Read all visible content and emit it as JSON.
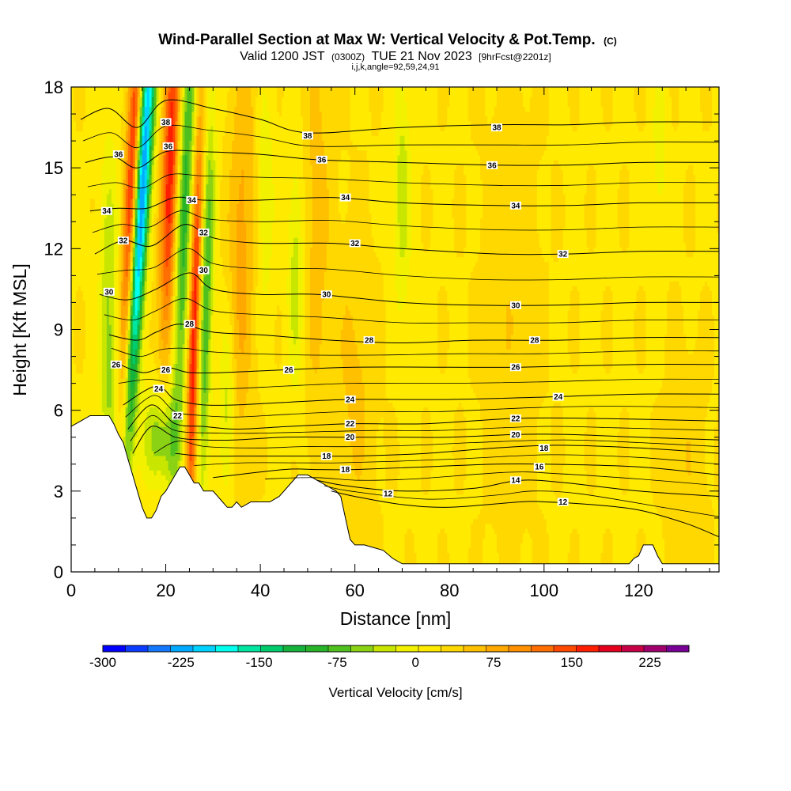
{
  "title": {
    "main": "Wind-Parallel Section at Max W: Vertical Velocity & Pot.Temp.",
    "main_suffix": "(C)",
    "valid_prefix": "Valid 1200 JST",
    "valid_utc": "(0300Z)",
    "valid_date": "TUE 21 Nov 2023",
    "forecast": "[9hrFcst@2201z]",
    "params": "i,j,k,angle=92,59,24,91"
  },
  "colorbar": {
    "title": "Vertical Velocity [cm/s]",
    "tick_labels": [
      "-300",
      "-225",
      "-150",
      "-75",
      "0",
      "75",
      "150",
      "225"
    ],
    "tick_values": [
      -300,
      -225,
      -150,
      -75,
      0,
      75,
      150,
      225
    ],
    "range": [
      -300,
      262.5
    ],
    "colors": [
      "#0000ff",
      "#0a3cff",
      "#1478ff",
      "#00aaff",
      "#00d2ff",
      "#00ffee",
      "#00e6a0",
      "#00cc6e",
      "#14b43c",
      "#28b428",
      "#50c01e",
      "#8cd214",
      "#c8e600",
      "#f2f200",
      "#ffea00",
      "#ffd800",
      "#ffc000",
      "#ffa800",
      "#ff9000",
      "#ff6e00",
      "#ff4800",
      "#ff1e00",
      "#e6001e",
      "#c80046",
      "#a0006e",
      "#780096"
    ]
  },
  "chart_data": {
    "type": "heatmap",
    "title": "Wind-Parallel Section at Max W: Vertical Velocity & Pot.Temp.",
    "xlabel": "Distance [nm]",
    "ylabel": "Height [Kft MSL]",
    "xlim": [
      0,
      137
    ],
    "ylim": [
      0,
      18
    ],
    "x_ticks": [
      0,
      20,
      40,
      60,
      80,
      100,
      120
    ],
    "x_tick_labels": [
      "0",
      "20",
      "40",
      "60",
      "80",
      "100",
      "120"
    ],
    "y_ticks": [
      0,
      3,
      6,
      9,
      12,
      15,
      18
    ],
    "y_tick_labels": [
      "0",
      "3",
      "6",
      "9",
      "12",
      "15",
      "18"
    ],
    "terrain": [
      [
        0,
        5.4
      ],
      [
        2,
        5.6
      ],
      [
        4,
        5.8
      ],
      [
        6,
        5.8
      ],
      [
        8,
        5.8
      ],
      [
        9,
        5.5
      ],
      [
        10,
        5.1
      ],
      [
        11,
        4.8
      ],
      [
        12,
        4.2
      ],
      [
        13,
        3.6
      ],
      [
        14,
        3.0
      ],
      [
        15,
        2.4
      ],
      [
        16,
        2.0
      ],
      [
        17,
        2.0
      ],
      [
        18,
        2.3
      ],
      [
        19,
        2.8
      ],
      [
        20,
        3.0
      ],
      [
        21,
        3.3
      ],
      [
        22,
        3.6
      ],
      [
        23,
        3.9
      ],
      [
        24,
        3.9
      ],
      [
        25,
        3.6
      ],
      [
        26,
        3.3
      ],
      [
        27,
        3.3
      ],
      [
        28,
        3.0
      ],
      [
        30,
        3.0
      ],
      [
        31,
        2.8
      ],
      [
        32,
        2.6
      ],
      [
        33,
        2.4
      ],
      [
        34,
        2.4
      ],
      [
        35,
        2.6
      ],
      [
        36,
        2.4
      ],
      [
        38,
        2.6
      ],
      [
        40,
        2.6
      ],
      [
        42,
        2.6
      ],
      [
        44,
        2.8
      ],
      [
        46,
        3.2
      ],
      [
        48,
        3.6
      ],
      [
        50,
        3.6
      ],
      [
        52,
        3.4
      ],
      [
        54,
        3.2
      ],
      [
        56,
        3.0
      ],
      [
        57,
        2.8
      ],
      [
        58,
        2.0
      ],
      [
        59,
        1.2
      ],
      [
        60,
        1.0
      ],
      [
        62,
        1.0
      ],
      [
        64,
        0.9
      ],
      [
        66,
        0.8
      ],
      [
        68,
        0.5
      ],
      [
        70,
        0.3
      ],
      [
        80,
        0.3
      ],
      [
        90,
        0.3
      ],
      [
        100,
        0.3
      ],
      [
        110,
        0.3
      ],
      [
        118,
        0.3
      ],
      [
        119,
        0.5
      ],
      [
        120,
        0.6
      ],
      [
        121,
        1.0
      ],
      [
        123,
        1.0
      ],
      [
        124,
        0.6
      ],
      [
        125,
        0.3
      ],
      [
        130,
        0.3
      ],
      [
        135,
        0.3
      ],
      [
        137,
        0.3
      ]
    ],
    "w_features": [
      {
        "x": 8,
        "y": 8.5,
        "sx": 1.4,
        "sy": 5,
        "tilt": 0,
        "amp": -70
      },
      {
        "x": 12.5,
        "y": 12,
        "sx": 1.1,
        "sy": 8,
        "tilt": 0.2,
        "amp": 175
      },
      {
        "x": 14.5,
        "y": 13,
        "sx": 1.2,
        "sy": 8,
        "tilt": 0.35,
        "amp": -280
      },
      {
        "x": 19,
        "y": 5,
        "sx": 2.5,
        "sy": 1.3,
        "tilt": 0,
        "amp": -90
      },
      {
        "x": 21,
        "y": 15,
        "sx": 1.3,
        "sy": 5,
        "tilt": 0.15,
        "amp": 150
      },
      {
        "x": 24,
        "y": 13.5,
        "sx": 1.3,
        "sy": 6.5,
        "tilt": 0.2,
        "amp": -120
      },
      {
        "x": 26,
        "y": 9,
        "sx": 0.9,
        "sy": 6,
        "tilt": 0.15,
        "amp": 160
      },
      {
        "x": 28.5,
        "y": 10,
        "sx": 1.0,
        "sy": 5,
        "tilt": 0.15,
        "amp": -110
      },
      {
        "x": 33,
        "y": 6,
        "sx": 1.2,
        "sy": 2.5,
        "tilt": 0,
        "amp": -60
      },
      {
        "x": 36,
        "y": 12,
        "sx": 2.0,
        "sy": 6,
        "tilt": 0.1,
        "amp": 55
      },
      {
        "x": 41,
        "y": 14,
        "sx": 1.3,
        "sy": 3,
        "tilt": 0,
        "amp": -40
      },
      {
        "x": 47.5,
        "y": 11,
        "sx": 1.2,
        "sy": 3,
        "tilt": 0,
        "amp": -55
      },
      {
        "x": 52,
        "y": 13,
        "sx": 2.0,
        "sy": 6,
        "tilt": 0,
        "amp": 35
      },
      {
        "x": 70,
        "y": 14,
        "sx": 1.3,
        "sy": 3,
        "tilt": 0,
        "amp": -55
      },
      {
        "x": 60,
        "y": 7,
        "sx": 3.0,
        "sy": 4,
        "tilt": 0,
        "amp": 30
      },
      {
        "x": 93,
        "y": 10,
        "sx": 4.0,
        "sy": 6,
        "tilt": 0,
        "amp": 20
      },
      {
        "x": 124.5,
        "y": 16,
        "sx": 1.0,
        "sy": 2,
        "tilt": 0,
        "amp": -40
      },
      {
        "x": 130,
        "y": 4,
        "sx": 3.0,
        "sy": 3,
        "tilt": 0,
        "amp": 20
      }
    ],
    "contours": [
      {
        "level": "12",
        "points": [
          [
            55,
            3.0
          ],
          [
            60,
            2.8
          ],
          [
            70,
            2.5
          ],
          [
            80,
            2.4
          ],
          [
            95,
            2.6
          ],
          [
            100,
            2.6
          ],
          [
            110,
            2.5
          ],
          [
            120,
            2.3
          ],
          [
            130,
            1.8
          ],
          [
            137,
            1.3
          ]
        ]
      },
      {
        "level": "14",
        "points": [
          [
            52,
            3.4
          ],
          [
            58,
            3.2
          ],
          [
            70,
            3.0
          ],
          [
            85,
            3.1
          ],
          [
            95,
            3.4
          ],
          [
            105,
            3.3
          ],
          [
            120,
            3.0
          ],
          [
            137,
            2.8
          ]
        ]
      },
      {
        "level": "16",
        "points": [
          [
            30,
            3.5
          ],
          [
            45,
            3.8
          ],
          [
            52,
            3.8
          ],
          [
            60,
            3.8
          ],
          [
            75,
            3.9
          ],
          [
            90,
            4.0
          ],
          [
            100,
            4.0
          ],
          [
            120,
            3.9
          ],
          [
            137,
            3.6
          ]
        ]
      },
      {
        "level": "18",
        "points": [
          [
            22,
            4.4
          ],
          [
            28,
            4.3
          ],
          [
            35,
            4.3
          ],
          [
            45,
            4.3
          ],
          [
            53,
            4.3
          ],
          [
            60,
            4.3
          ],
          [
            75,
            4.4
          ],
          [
            90,
            4.6
          ],
          [
            103,
            4.7
          ],
          [
            120,
            4.6
          ],
          [
            137,
            4.4
          ]
        ]
      },
      {
        "level": "20",
        "points": [
          [
            13,
            4.4
          ],
          [
            17,
            5.4
          ],
          [
            22,
            5.0
          ],
          [
            28,
            4.9
          ],
          [
            35,
            4.9
          ],
          [
            45,
            5.0
          ],
          [
            58,
            5.0
          ],
          [
            70,
            5.0
          ],
          [
            80,
            5.0
          ],
          [
            94,
            5.1
          ],
          [
            105,
            5.1
          ],
          [
            120,
            5.0
          ],
          [
            137,
            4.9
          ]
        ]
      },
      {
        "level": "22",
        "points": [
          [
            12,
            5.3
          ],
          [
            17,
            6.2
          ],
          [
            22,
            5.5
          ],
          [
            28,
            5.4
          ],
          [
            35,
            5.3
          ],
          [
            46,
            5.4
          ],
          [
            59,
            5.5
          ],
          [
            75,
            5.5
          ],
          [
            94,
            5.7
          ],
          [
            110,
            5.7
          ],
          [
            137,
            5.6
          ]
        ]
      },
      {
        "level": "24",
        "points": [
          [
            11,
            6.2
          ],
          [
            18,
            6.9
          ],
          [
            22,
            6.4
          ],
          [
            28,
            6.2
          ],
          [
            35,
            6.2
          ],
          [
            46,
            6.3
          ],
          [
            59,
            6.4
          ],
          [
            80,
            6.4
          ],
          [
            102,
            6.5
          ],
          [
            120,
            6.6
          ],
          [
            137,
            6.6
          ]
        ]
      },
      {
        "level": "26",
        "points": [
          [
            9,
            7.8
          ],
          [
            15,
            7.4
          ],
          [
            20,
            7.6
          ],
          [
            25,
            7.4
          ],
          [
            32,
            7.4
          ],
          [
            45,
            7.5
          ],
          [
            60,
            7.6
          ],
          [
            80,
            7.6
          ],
          [
            95,
            7.6
          ],
          [
            120,
            7.7
          ],
          [
            137,
            7.7
          ]
        ]
      },
      {
        "level": "28",
        "points": [
          [
            8,
            8.8
          ],
          [
            14,
            8.6
          ],
          [
            18,
            8.9
          ],
          [
            23,
            9.2
          ],
          [
            30,
            8.9
          ],
          [
            40,
            8.8
          ],
          [
            55,
            8.6
          ],
          [
            70,
            8.5
          ],
          [
            85,
            8.6
          ],
          [
            103,
            8.6
          ],
          [
            120,
            8.7
          ],
          [
            137,
            8.7
          ]
        ]
      },
      {
        "level": "30",
        "points": [
          [
            6,
            10.3
          ],
          [
            12,
            10.1
          ],
          [
            18,
            10.5
          ],
          [
            25,
            11.1
          ],
          [
            30,
            10.5
          ],
          [
            40,
            10.3
          ],
          [
            52,
            10.3
          ],
          [
            70,
            10.0
          ],
          [
            85,
            9.9
          ],
          [
            103,
            9.9
          ],
          [
            120,
            10.0
          ],
          [
            137,
            10.0
          ]
        ]
      },
      {
        "level": "32",
        "points": [
          [
            5,
            11.8
          ],
          [
            11,
            12.3
          ],
          [
            17,
            12.1
          ],
          [
            24,
            12.9
          ],
          [
            30,
            12.4
          ],
          [
            40,
            12.2
          ],
          [
            55,
            12.2
          ],
          [
            70,
            12.0
          ],
          [
            90,
            11.8
          ],
          [
            105,
            11.8
          ],
          [
            120,
            11.9
          ],
          [
            137,
            11.9
          ]
        ]
      },
      {
        "level": "34",
        "points": [
          [
            4,
            13.4
          ],
          [
            10,
            13.5
          ],
          [
            16,
            13.5
          ],
          [
            22,
            13.9
          ],
          [
            28,
            13.8
          ],
          [
            40,
            13.8
          ],
          [
            55,
            13.9
          ],
          [
            70,
            13.7
          ],
          [
            90,
            13.6
          ],
          [
            105,
            13.6
          ],
          [
            120,
            13.7
          ],
          [
            137,
            13.7
          ]
        ]
      },
      {
        "level": "36",
        "points": [
          [
            3,
            15.2
          ],
          [
            9,
            15.4
          ],
          [
            14,
            15.0
          ],
          [
            20,
            15.6
          ],
          [
            28,
            15.6
          ],
          [
            40,
            15.5
          ],
          [
            52,
            15.3
          ],
          [
            70,
            15.2
          ],
          [
            90,
            15.1
          ],
          [
            105,
            15.1
          ],
          [
            120,
            15.2
          ],
          [
            137,
            15.2
          ]
        ]
      },
      {
        "level": "38",
        "points": [
          [
            2,
            16.8
          ],
          [
            8,
            17.2
          ],
          [
            14,
            16.5
          ],
          [
            20,
            17.5
          ],
          [
            30,
            17.2
          ],
          [
            40,
            16.8
          ],
          [
            50,
            16.3
          ],
          [
            70,
            16.5
          ],
          [
            90,
            16.6
          ],
          [
            105,
            16.6
          ],
          [
            120,
            16.7
          ],
          [
            137,
            16.7
          ]
        ]
      }
    ],
    "contour_labels": [
      {
        "text": "38",
        "x": 20,
        "y": 16.7
      },
      {
        "text": "38",
        "x": 50,
        "y": 16.2
      },
      {
        "text": "38",
        "x": 90,
        "y": 16.5
      },
      {
        "text": "36",
        "x": 10,
        "y": 15.5
      },
      {
        "text": "36",
        "x": 20.5,
        "y": 15.8
      },
      {
        "text": "36",
        "x": 53,
        "y": 15.3
      },
      {
        "text": "36",
        "x": 89,
        "y": 15.1
      },
      {
        "text": "34",
        "x": 7.5,
        "y": 13.4
      },
      {
        "text": "34",
        "x": 25.5,
        "y": 13.8
      },
      {
        "text": "34",
        "x": 58,
        "y": 13.9
      },
      {
        "text": "34",
        "x": 94,
        "y": 13.6
      },
      {
        "text": "32",
        "x": 11,
        "y": 12.3
      },
      {
        "text": "32",
        "x": 28,
        "y": 12.6
      },
      {
        "text": "32",
        "x": 60,
        "y": 12.2
      },
      {
        "text": "32",
        "x": 104,
        "y": 11.8
      },
      {
        "text": "30",
        "x": 8,
        "y": 10.4
      },
      {
        "text": "30",
        "x": 28,
        "y": 11.2
      },
      {
        "text": "30",
        "x": 54,
        "y": 10.3
      },
      {
        "text": "30",
        "x": 94,
        "y": 9.9
      },
      {
        "text": "28",
        "x": 25,
        "y": 9.2
      },
      {
        "text": "28",
        "x": 63,
        "y": 8.6
      },
      {
        "text": "28",
        "x": 98,
        "y": 8.6
      },
      {
        "text": "26",
        "x": 9.5,
        "y": 7.7
      },
      {
        "text": "26",
        "x": 20,
        "y": 7.5
      },
      {
        "text": "26",
        "x": 46,
        "y": 7.5
      },
      {
        "text": "26",
        "x": 94,
        "y": 7.6
      },
      {
        "text": "24",
        "x": 18.5,
        "y": 6.8
      },
      {
        "text": "24",
        "x": 59,
        "y": 6.4
      },
      {
        "text": "24",
        "x": 103,
        "y": 6.5
      },
      {
        "text": "22",
        "x": 22.5,
        "y": 5.8
      },
      {
        "text": "22",
        "x": 59,
        "y": 5.5
      },
      {
        "text": "22",
        "x": 94,
        "y": 5.7
      },
      {
        "text": "20",
        "x": 59,
        "y": 5.0
      },
      {
        "text": "20",
        "x": 94,
        "y": 5.1
      },
      {
        "text": "18",
        "x": 54,
        "y": 4.3
      },
      {
        "text": "18",
        "x": 58,
        "y": 3.8
      },
      {
        "text": "18",
        "x": 100,
        "y": 4.6
      },
      {
        "text": "16",
        "x": 99,
        "y": 3.9
      },
      {
        "text": "14",
        "x": 94,
        "y": 3.4
      },
      {
        "text": "12",
        "x": 67,
        "y": 2.9
      },
      {
        "text": "12",
        "x": 104,
        "y": 2.6
      }
    ]
  }
}
